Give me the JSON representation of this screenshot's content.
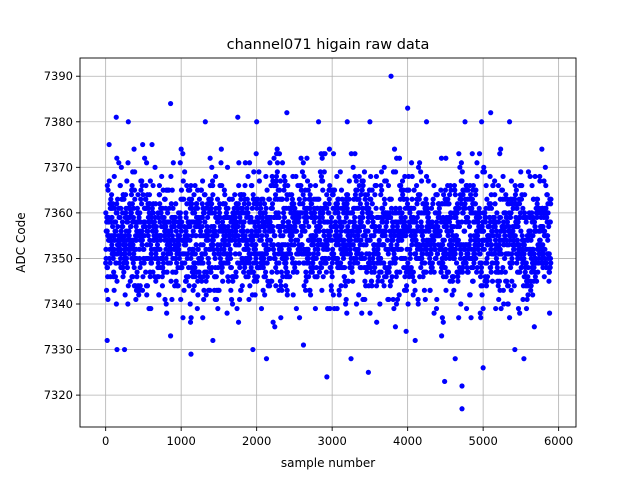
{
  "chart_data": {
    "type": "scatter",
    "title": "channel071 higain raw data",
    "xlabel": "sample number",
    "ylabel": "ADC Code",
    "xlim": [
      -340,
      6230
    ],
    "ylim": [
      7313,
      7394
    ],
    "xticks": [
      0,
      1000,
      2000,
      3000,
      4000,
      5000,
      6000
    ],
    "yticks": [
      7320,
      7330,
      7340,
      7350,
      7360,
      7370,
      7380,
      7390
    ],
    "grid": true,
    "marker_color": "#0000ff",
    "n_samples": 5900,
    "bulk_range": [
      7335,
      7375
    ],
    "center": 7355,
    "outliers": [
      {
        "x": 860,
        "y": 7384
      },
      {
        "x": 3780,
        "y": 7390
      },
      {
        "x": 4000,
        "y": 7383
      },
      {
        "x": 5100,
        "y": 7382
      },
      {
        "x": 2930,
        "y": 7324
      },
      {
        "x": 3480,
        "y": 7325
      },
      {
        "x": 4720,
        "y": 7317
      },
      {
        "x": 4720,
        "y": 7322
      },
      {
        "x": 4490,
        "y": 7323
      },
      {
        "x": 5000,
        "y": 7326
      },
      {
        "x": 1130,
        "y": 7329
      },
      {
        "x": 2130,
        "y": 7328
      },
      {
        "x": 3250,
        "y": 7328
      },
      {
        "x": 4630,
        "y": 7328
      },
      {
        "x": 5540,
        "y": 7328
      },
      {
        "x": 1950,
        "y": 7330
      },
      {
        "x": 150,
        "y": 7330
      },
      {
        "x": 250,
        "y": 7330
      },
      {
        "x": 5420,
        "y": 7330
      },
      {
        "x": 140,
        "y": 7381
      },
      {
        "x": 2400,
        "y": 7382
      },
      {
        "x": 2000,
        "y": 7380
      },
      {
        "x": 1320,
        "y": 7380
      },
      {
        "x": 1750,
        "y": 7381
      },
      {
        "x": 3200,
        "y": 7380
      },
      {
        "x": 3500,
        "y": 7380
      },
      {
        "x": 4250,
        "y": 7380
      },
      {
        "x": 4760,
        "y": 7380
      },
      {
        "x": 4980,
        "y": 7380
      },
      {
        "x": 2820,
        "y": 7380
      },
      {
        "x": 5350,
        "y": 7380
      },
      {
        "x": 300,
        "y": 7380
      },
      {
        "x": 3980,
        "y": 7334
      },
      {
        "x": 20,
        "y": 7332
      },
      {
        "x": 4100,
        "y": 7332
      },
      {
        "x": 1420,
        "y": 7332
      },
      {
        "x": 2620,
        "y": 7331
      },
      {
        "x": 860,
        "y": 7333
      },
      {
        "x": 4450,
        "y": 7333
      }
    ]
  }
}
